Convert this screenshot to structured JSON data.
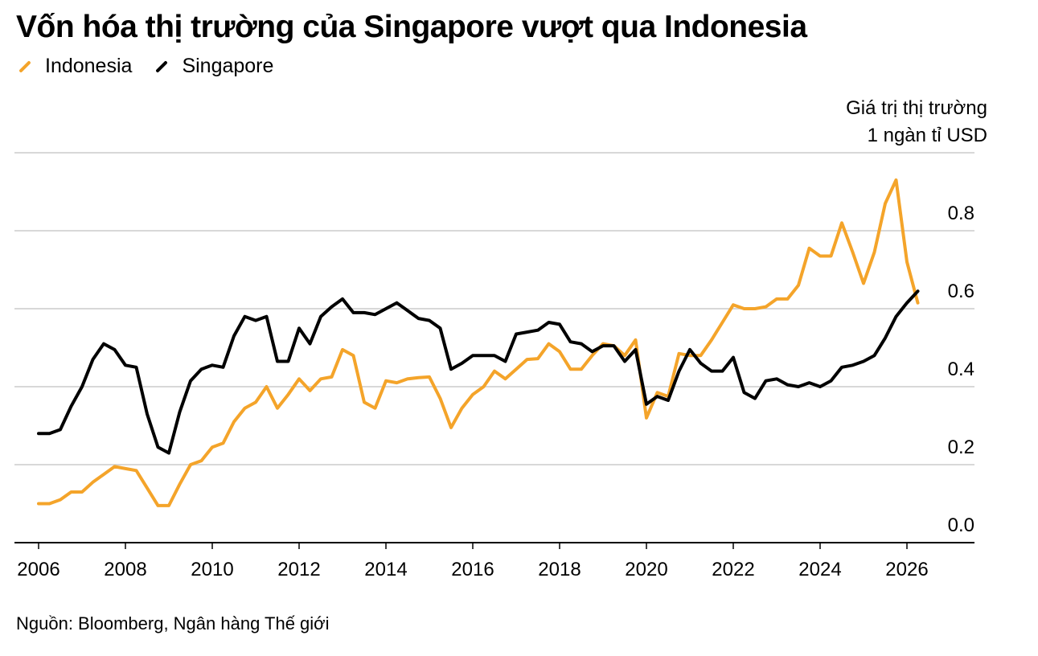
{
  "title": "Vốn hóa thị trường của Singapore vượt qua Indonesia",
  "unit_label": [
    "Giá trị thị trường",
    "1 ngàn tỉ USD"
  ],
  "source": "Nguồn: Bloomberg, Ngân hàng Thế giới",
  "colors": {
    "Indonesia": "#f4a42a",
    "Singapore": "#000000",
    "grid": "#cccccc"
  },
  "chart_data": {
    "type": "line",
    "title": "Vốn hóa thị trường của Singapore vượt qua Indonesia",
    "ylabel": "Giá trị thị trường 1 ngàn tỉ USD",
    "xlabel": "",
    "ylim": [
      0,
      1
    ],
    "xlim": [
      2006,
      2026.25
    ],
    "grid": true,
    "legend_position": "top-left",
    "xticks": [
      "2006",
      "2008",
      "2010",
      "2012",
      "2014",
      "2016",
      "2018",
      "2020",
      "2022",
      "2024",
      "2026"
    ],
    "yticks": [
      "0.0",
      "0.2",
      "0.4",
      "0.6",
      "0.8"
    ],
    "series": [
      {
        "name": "Indonesia",
        "color": "#f4a42a",
        "x": [
          2006,
          2006.25,
          2006.5,
          2006.75,
          2007,
          2007.25,
          2007.5,
          2007.75,
          2008,
          2008.25,
          2008.5,
          2008.75,
          2009,
          2009.25,
          2009.5,
          2009.75,
          2010,
          2010.25,
          2010.5,
          2010.75,
          2011,
          2011.25,
          2011.5,
          2011.75,
          2012,
          2012.25,
          2012.5,
          2012.75,
          2013,
          2013.25,
          2013.5,
          2013.75,
          2014,
          2014.25,
          2014.5,
          2014.75,
          2015,
          2015.25,
          2015.5,
          2015.75,
          2016,
          2016.25,
          2016.5,
          2016.75,
          2017,
          2017.25,
          2017.5,
          2017.75,
          2018,
          2018.25,
          2018.5,
          2018.75,
          2019,
          2019.25,
          2019.5,
          2019.75,
          2020,
          2020.25,
          2020.5,
          2020.75,
          2021,
          2021.25,
          2021.5,
          2021.75,
          2022,
          2022.25,
          2022.5,
          2022.75,
          2023,
          2023.25,
          2023.5,
          2023.75,
          2024,
          2024.25,
          2024.5,
          2024.75,
          2025,
          2025.25,
          2025.5,
          2025.75,
          2026,
          2026.25
        ],
        "values": [
          0.1,
          0.1,
          0.11,
          0.13,
          0.13,
          0.155,
          0.175,
          0.195,
          0.19,
          0.185,
          0.14,
          0.095,
          0.095,
          0.15,
          0.2,
          0.21,
          0.245,
          0.255,
          0.31,
          0.345,
          0.36,
          0.4,
          0.345,
          0.38,
          0.42,
          0.39,
          0.42,
          0.425,
          0.495,
          0.48,
          0.36,
          0.345,
          0.415,
          0.41,
          0.42,
          0.423,
          0.425,
          0.37,
          0.295,
          0.345,
          0.38,
          0.4,
          0.44,
          0.42,
          0.445,
          0.47,
          0.472,
          0.51,
          0.49,
          0.445,
          0.445,
          0.48,
          0.51,
          0.505,
          0.48,
          0.52,
          0.32,
          0.385,
          0.375,
          0.485,
          0.48,
          0.48,
          0.52,
          0.565,
          0.61,
          0.6,
          0.6,
          0.605,
          0.625,
          0.625,
          0.66,
          0.755,
          0.735,
          0.735,
          0.82,
          0.745,
          0.665,
          0.745,
          0.87,
          0.93,
          0.72,
          0.615
        ]
      },
      {
        "name": "Singapore",
        "color": "#000000",
        "x": [
          2006,
          2006.25,
          2006.5,
          2006.75,
          2007,
          2007.25,
          2007.5,
          2007.75,
          2008,
          2008.25,
          2008.5,
          2008.75,
          2009,
          2009.25,
          2009.5,
          2009.75,
          2010,
          2010.25,
          2010.5,
          2010.75,
          2011,
          2011.25,
          2011.5,
          2011.75,
          2012,
          2012.25,
          2012.5,
          2012.75,
          2013,
          2013.25,
          2013.5,
          2013.75,
          2014,
          2014.25,
          2014.5,
          2014.75,
          2015,
          2015.25,
          2015.5,
          2015.75,
          2016,
          2016.25,
          2016.5,
          2016.75,
          2017,
          2017.25,
          2017.5,
          2017.75,
          2018,
          2018.25,
          2018.5,
          2018.75,
          2019,
          2019.25,
          2019.5,
          2019.75,
          2020,
          2020.25,
          2020.5,
          2020.75,
          2021,
          2021.25,
          2021.5,
          2021.75,
          2022,
          2022.25,
          2022.5,
          2022.75,
          2023,
          2023.25,
          2023.5,
          2023.75,
          2024,
          2024.25,
          2024.5,
          2024.75,
          2025,
          2025.25,
          2025.5,
          2025.75,
          2026,
          2026.25
        ],
        "values": [
          0.28,
          0.28,
          0.29,
          0.35,
          0.4,
          0.47,
          0.51,
          0.495,
          0.455,
          0.45,
          0.33,
          0.245,
          0.23,
          0.335,
          0.415,
          0.445,
          0.455,
          0.45,
          0.53,
          0.58,
          0.57,
          0.58,
          0.465,
          0.465,
          0.55,
          0.51,
          0.58,
          0.605,
          0.625,
          0.59,
          0.59,
          0.585,
          0.6,
          0.615,
          0.595,
          0.575,
          0.57,
          0.55,
          0.445,
          0.46,
          0.48,
          0.48,
          0.48,
          0.465,
          0.535,
          0.54,
          0.545,
          0.565,
          0.56,
          0.515,
          0.51,
          0.49,
          0.505,
          0.505,
          0.465,
          0.495,
          0.355,
          0.375,
          0.365,
          0.44,
          0.495,
          0.46,
          0.44,
          0.44,
          0.475,
          0.385,
          0.37,
          0.415,
          0.42,
          0.405,
          0.4,
          0.41,
          0.4,
          0.415,
          0.45,
          0.455,
          0.465,
          0.48,
          0.525,
          0.58,
          0.615,
          0.645
        ]
      }
    ]
  }
}
